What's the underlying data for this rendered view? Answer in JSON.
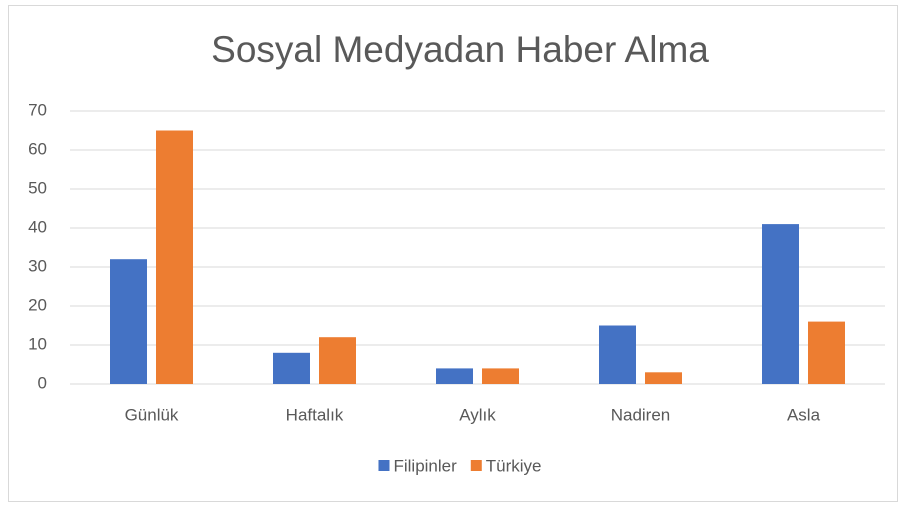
{
  "chart_data": {
    "type": "bar",
    "title": "Sosyal Medyadan Haber Alma",
    "categories": [
      "Günlük",
      "Haftalık",
      "Aylık",
      "Nadiren",
      "Asla"
    ],
    "series": [
      {
        "name": "Filipinler",
        "color": "#4472c4",
        "values": [
          32,
          8,
          4,
          15,
          41
        ]
      },
      {
        "name": "Türkiye",
        "color": "#ed7d31",
        "values": [
          65,
          12,
          4,
          3,
          16
        ]
      }
    ],
    "ylim": [
      0,
      70
    ],
    "yticks": [
      0,
      10,
      20,
      30,
      40,
      50,
      60,
      70
    ],
    "grid": true,
    "legend": "bottom"
  }
}
